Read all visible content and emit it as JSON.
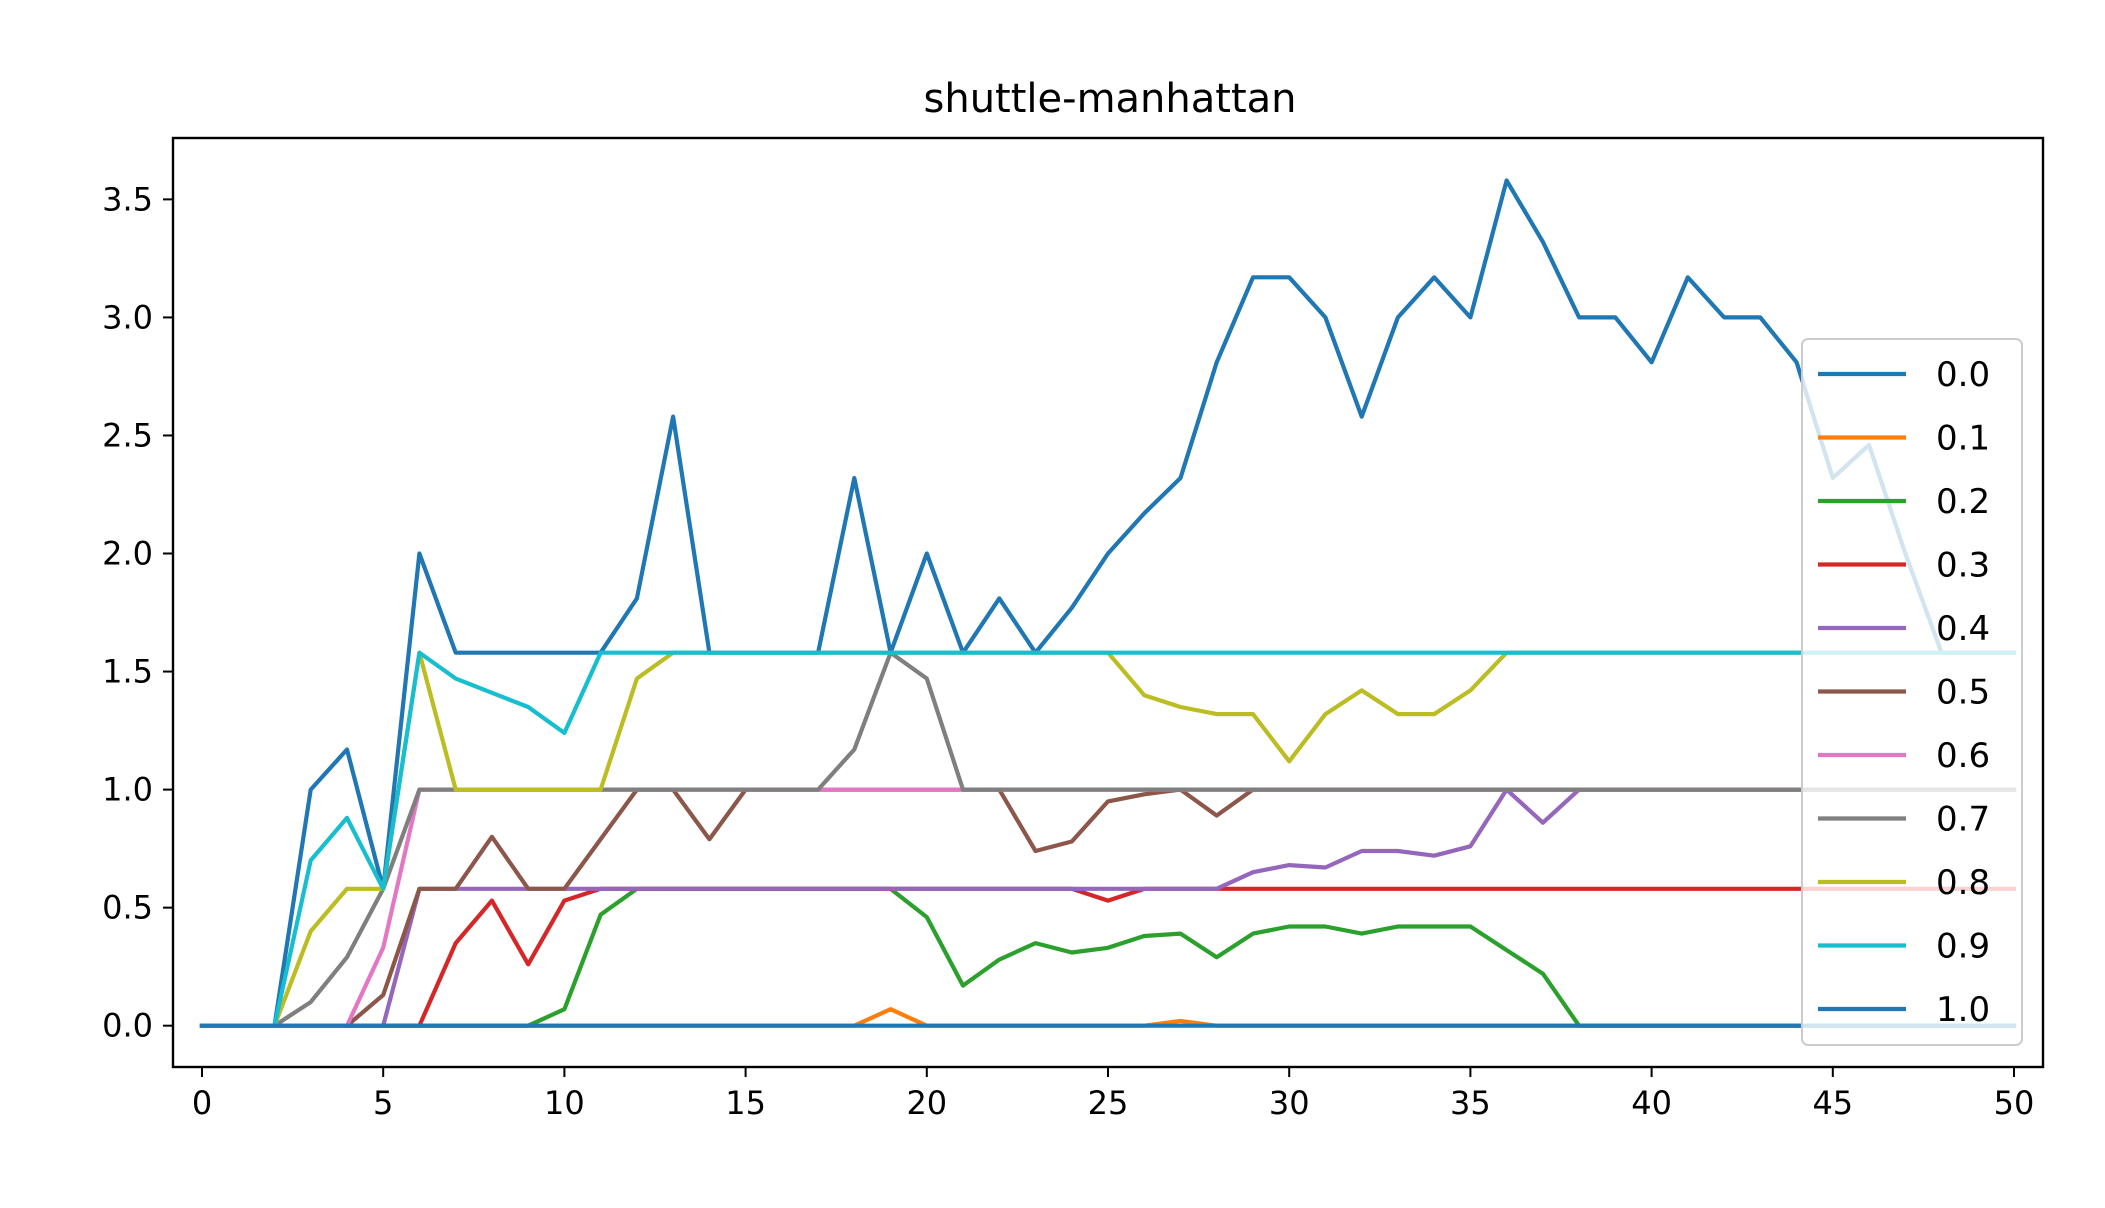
{
  "chart_data": {
    "type": "line",
    "title": "shuttle-manhattan",
    "xlabel": "",
    "ylabel": "",
    "xlim": [
      -0.8,
      50.8
    ],
    "ylim": [
      -0.175,
      3.76
    ],
    "xticks": [
      0,
      5,
      10,
      15,
      20,
      25,
      30,
      35,
      40,
      45,
      50
    ],
    "xtick_labels": [
      "0",
      "5",
      "10",
      "15",
      "20",
      "25",
      "30",
      "35",
      "40",
      "45",
      "50"
    ],
    "yticks": [
      0.0,
      0.5,
      1.0,
      1.5,
      2.0,
      2.5,
      3.0,
      3.5
    ],
    "ytick_labels": [
      "0.0",
      "0.5",
      "1.0",
      "1.5",
      "2.0",
      "2.5",
      "3.0",
      "3.5"
    ],
    "grid": false,
    "legend_position": "right",
    "x": [
      0,
      1,
      2,
      3,
      4,
      5,
      6,
      7,
      8,
      9,
      10,
      11,
      12,
      13,
      14,
      15,
      16,
      17,
      18,
      19,
      20,
      21,
      22,
      23,
      24,
      25,
      26,
      27,
      28,
      29,
      30,
      31,
      32,
      33,
      34,
      35,
      36,
      37,
      38,
      39,
      40,
      41,
      42,
      43,
      44,
      45,
      46,
      47,
      48,
      49,
      50
    ],
    "series": [
      {
        "name": "0.0",
        "color": "#1f77b4",
        "values": [
          0,
          0,
          0,
          1.0,
          1.17,
          0.58,
          2.0,
          1.58,
          1.58,
          1.58,
          1.58,
          1.58,
          1.81,
          2.58,
          1.58,
          1.58,
          1.58,
          1.58,
          2.32,
          1.58,
          2.0,
          1.58,
          1.81,
          1.58,
          1.77,
          2.0,
          2.17,
          2.32,
          2.81,
          3.17,
          3.17,
          3.0,
          2.58,
          3.0,
          3.17,
          3.0,
          3.58,
          3.32,
          3.0,
          3.0,
          2.81,
          3.17,
          3.0,
          3.0,
          2.81,
          2.32,
          2.46,
          2.0,
          1.58,
          1.58,
          1.58
        ]
      },
      {
        "name": "0.1",
        "color": "#ff7f0e",
        "values": [
          0,
          0,
          0,
          0,
          0,
          0,
          0,
          0,
          0,
          0,
          0,
          0,
          0,
          0,
          0,
          0,
          0,
          0,
          0,
          0.07,
          0,
          0,
          0,
          0,
          0,
          0,
          0,
          0.02,
          0,
          0,
          0,
          0,
          0,
          0,
          0,
          0,
          0,
          0,
          0,
          0,
          0,
          0,
          0,
          0,
          0,
          0,
          0,
          0,
          0,
          0,
          0
        ]
      },
      {
        "name": "0.2",
        "color": "#2ca02c",
        "values": [
          0,
          0,
          0,
          0,
          0,
          0,
          0,
          0,
          0,
          0,
          0.07,
          0.47,
          0.58,
          0.58,
          0.58,
          0.58,
          0.58,
          0.58,
          0.58,
          0.58,
          0.46,
          0.17,
          0.28,
          0.35,
          0.31,
          0.33,
          0.38,
          0.39,
          0.29,
          0.39,
          0.42,
          0.42,
          0.39,
          0.42,
          0.42,
          0.42,
          0.32,
          0.22,
          0,
          0,
          0,
          0,
          0,
          0,
          0,
          0,
          0,
          0,
          0,
          0,
          0
        ]
      },
      {
        "name": "0.3",
        "color": "#d62728",
        "values": [
          0,
          0,
          0,
          0,
          0,
          0,
          0,
          0.35,
          0.53,
          0.26,
          0.53,
          0.58,
          0.58,
          0.58,
          0.58,
          0.58,
          0.58,
          0.58,
          0.58,
          0.58,
          0.58,
          0.58,
          0.58,
          0.58,
          0.58,
          0.53,
          0.58,
          0.58,
          0.58,
          0.58,
          0.58,
          0.58,
          0.58,
          0.58,
          0.58,
          0.58,
          0.58,
          0.58,
          0.58,
          0.58,
          0.58,
          0.58,
          0.58,
          0.58,
          0.58,
          0.58,
          0.58,
          0.58,
          0.58,
          0.58,
          0.58
        ]
      },
      {
        "name": "0.4",
        "color": "#9467bd",
        "values": [
          0,
          0,
          0,
          0,
          0,
          0,
          0.58,
          0.58,
          0.58,
          0.58,
          0.58,
          0.58,
          0.58,
          0.58,
          0.58,
          0.58,
          0.58,
          0.58,
          0.58,
          0.58,
          0.58,
          0.58,
          0.58,
          0.58,
          0.58,
          0.58,
          0.58,
          0.58,
          0.58,
          0.65,
          0.68,
          0.67,
          0.74,
          0.74,
          0.72,
          0.76,
          1.0,
          0.86,
          1.0,
          1.0,
          1.0,
          1.0,
          1.0,
          1.0,
          1.0,
          1.0,
          1.0,
          1.0,
          1.0,
          1.0,
          1.0
        ]
      },
      {
        "name": "0.5",
        "color": "#8c564b",
        "values": [
          0,
          0,
          0,
          0,
          0,
          0.13,
          0.58,
          0.58,
          0.8,
          0.58,
          0.58,
          0.79,
          1.0,
          1.0,
          0.79,
          1.0,
          1.0,
          1.0,
          1.0,
          1.0,
          1.0,
          1.0,
          1.0,
          0.74,
          0.78,
          0.95,
          0.98,
          1.0,
          0.89,
          1.0,
          1.0,
          1.0,
          1.0,
          1.0,
          1.0,
          1.0,
          1.0,
          1.0,
          1.0,
          1.0,
          1.0,
          1.0,
          1.0,
          1.0,
          1.0,
          1.0,
          1.0,
          1.0,
          1.0,
          1.0,
          1.0
        ]
      },
      {
        "name": "0.6",
        "color": "#e377c2",
        "values": [
          0,
          0,
          0,
          0,
          0,
          0.33,
          1.0,
          1.0,
          1.0,
          1.0,
          1.0,
          1.0,
          1.0,
          1.0,
          1.0,
          1.0,
          1.0,
          1.0,
          1.0,
          1.0,
          1.0,
          1.0,
          1.0,
          1.0,
          1.0,
          1.0,
          1.0,
          1.0,
          1.0,
          1.0,
          1.0,
          1.0,
          1.0,
          1.0,
          1.0,
          1.0,
          1.0,
          1.0,
          1.0,
          1.0,
          1.0,
          1.0,
          1.0,
          1.0,
          1.0,
          1.0,
          1.0,
          1.0,
          1.0,
          1.0,
          1.0
        ]
      },
      {
        "name": "0.7",
        "color": "#7f7f7f",
        "values": [
          0,
          0,
          0,
          0.1,
          0.29,
          0.58,
          1.0,
          1.0,
          1.0,
          1.0,
          1.0,
          1.0,
          1.0,
          1.0,
          1.0,
          1.0,
          1.0,
          1.0,
          1.17,
          1.58,
          1.47,
          1.0,
          1.0,
          1.0,
          1.0,
          1.0,
          1.0,
          1.0,
          1.0,
          1.0,
          1.0,
          1.0,
          1.0,
          1.0,
          1.0,
          1.0,
          1.0,
          1.0,
          1.0,
          1.0,
          1.0,
          1.0,
          1.0,
          1.0,
          1.0,
          1.0,
          1.0,
          1.0,
          1.0,
          1.0,
          1.0
        ]
      },
      {
        "name": "0.8",
        "color": "#bcbd22",
        "values": [
          0,
          0,
          0,
          0.4,
          0.58,
          0.58,
          1.58,
          1.0,
          1.0,
          1.0,
          1.0,
          1.0,
          1.47,
          1.58,
          1.58,
          1.58,
          1.58,
          1.58,
          1.58,
          1.58,
          1.58,
          1.58,
          1.58,
          1.58,
          1.58,
          1.58,
          1.4,
          1.35,
          1.32,
          1.32,
          1.12,
          1.32,
          1.42,
          1.32,
          1.32,
          1.42,
          1.58,
          1.58,
          1.58,
          1.58,
          1.58,
          1.58,
          1.58,
          1.58,
          1.58,
          1.58,
          1.58,
          1.58,
          1.58,
          1.58,
          1.58
        ]
      },
      {
        "name": "0.9",
        "color": "#17becf",
        "values": [
          0,
          0,
          0,
          0.7,
          0.88,
          0.58,
          1.58,
          1.47,
          1.41,
          1.35,
          1.24,
          1.58,
          1.58,
          1.58,
          1.58,
          1.58,
          1.58,
          1.58,
          1.58,
          1.58,
          1.58,
          1.58,
          1.58,
          1.58,
          1.58,
          1.58,
          1.58,
          1.58,
          1.58,
          1.58,
          1.58,
          1.58,
          1.58,
          1.58,
          1.58,
          1.58,
          1.58,
          1.58,
          1.58,
          1.58,
          1.58,
          1.58,
          1.58,
          1.58,
          1.58,
          1.58,
          1.58,
          1.58,
          1.58,
          1.58,
          1.58
        ]
      },
      {
        "name": "1.0",
        "color": "#1f77b4",
        "values": [
          0,
          0,
          0,
          0,
          0,
          0,
          0,
          0,
          0,
          0,
          0,
          0,
          0,
          0,
          0,
          0,
          0,
          0,
          0,
          0,
          0,
          0,
          0,
          0,
          0,
          0,
          0,
          0,
          0,
          0,
          0,
          0,
          0,
          0,
          0,
          0,
          0,
          0,
          0,
          0,
          0,
          0,
          0,
          0,
          0,
          0,
          0,
          0,
          0,
          0,
          0
        ]
      }
    ]
  }
}
